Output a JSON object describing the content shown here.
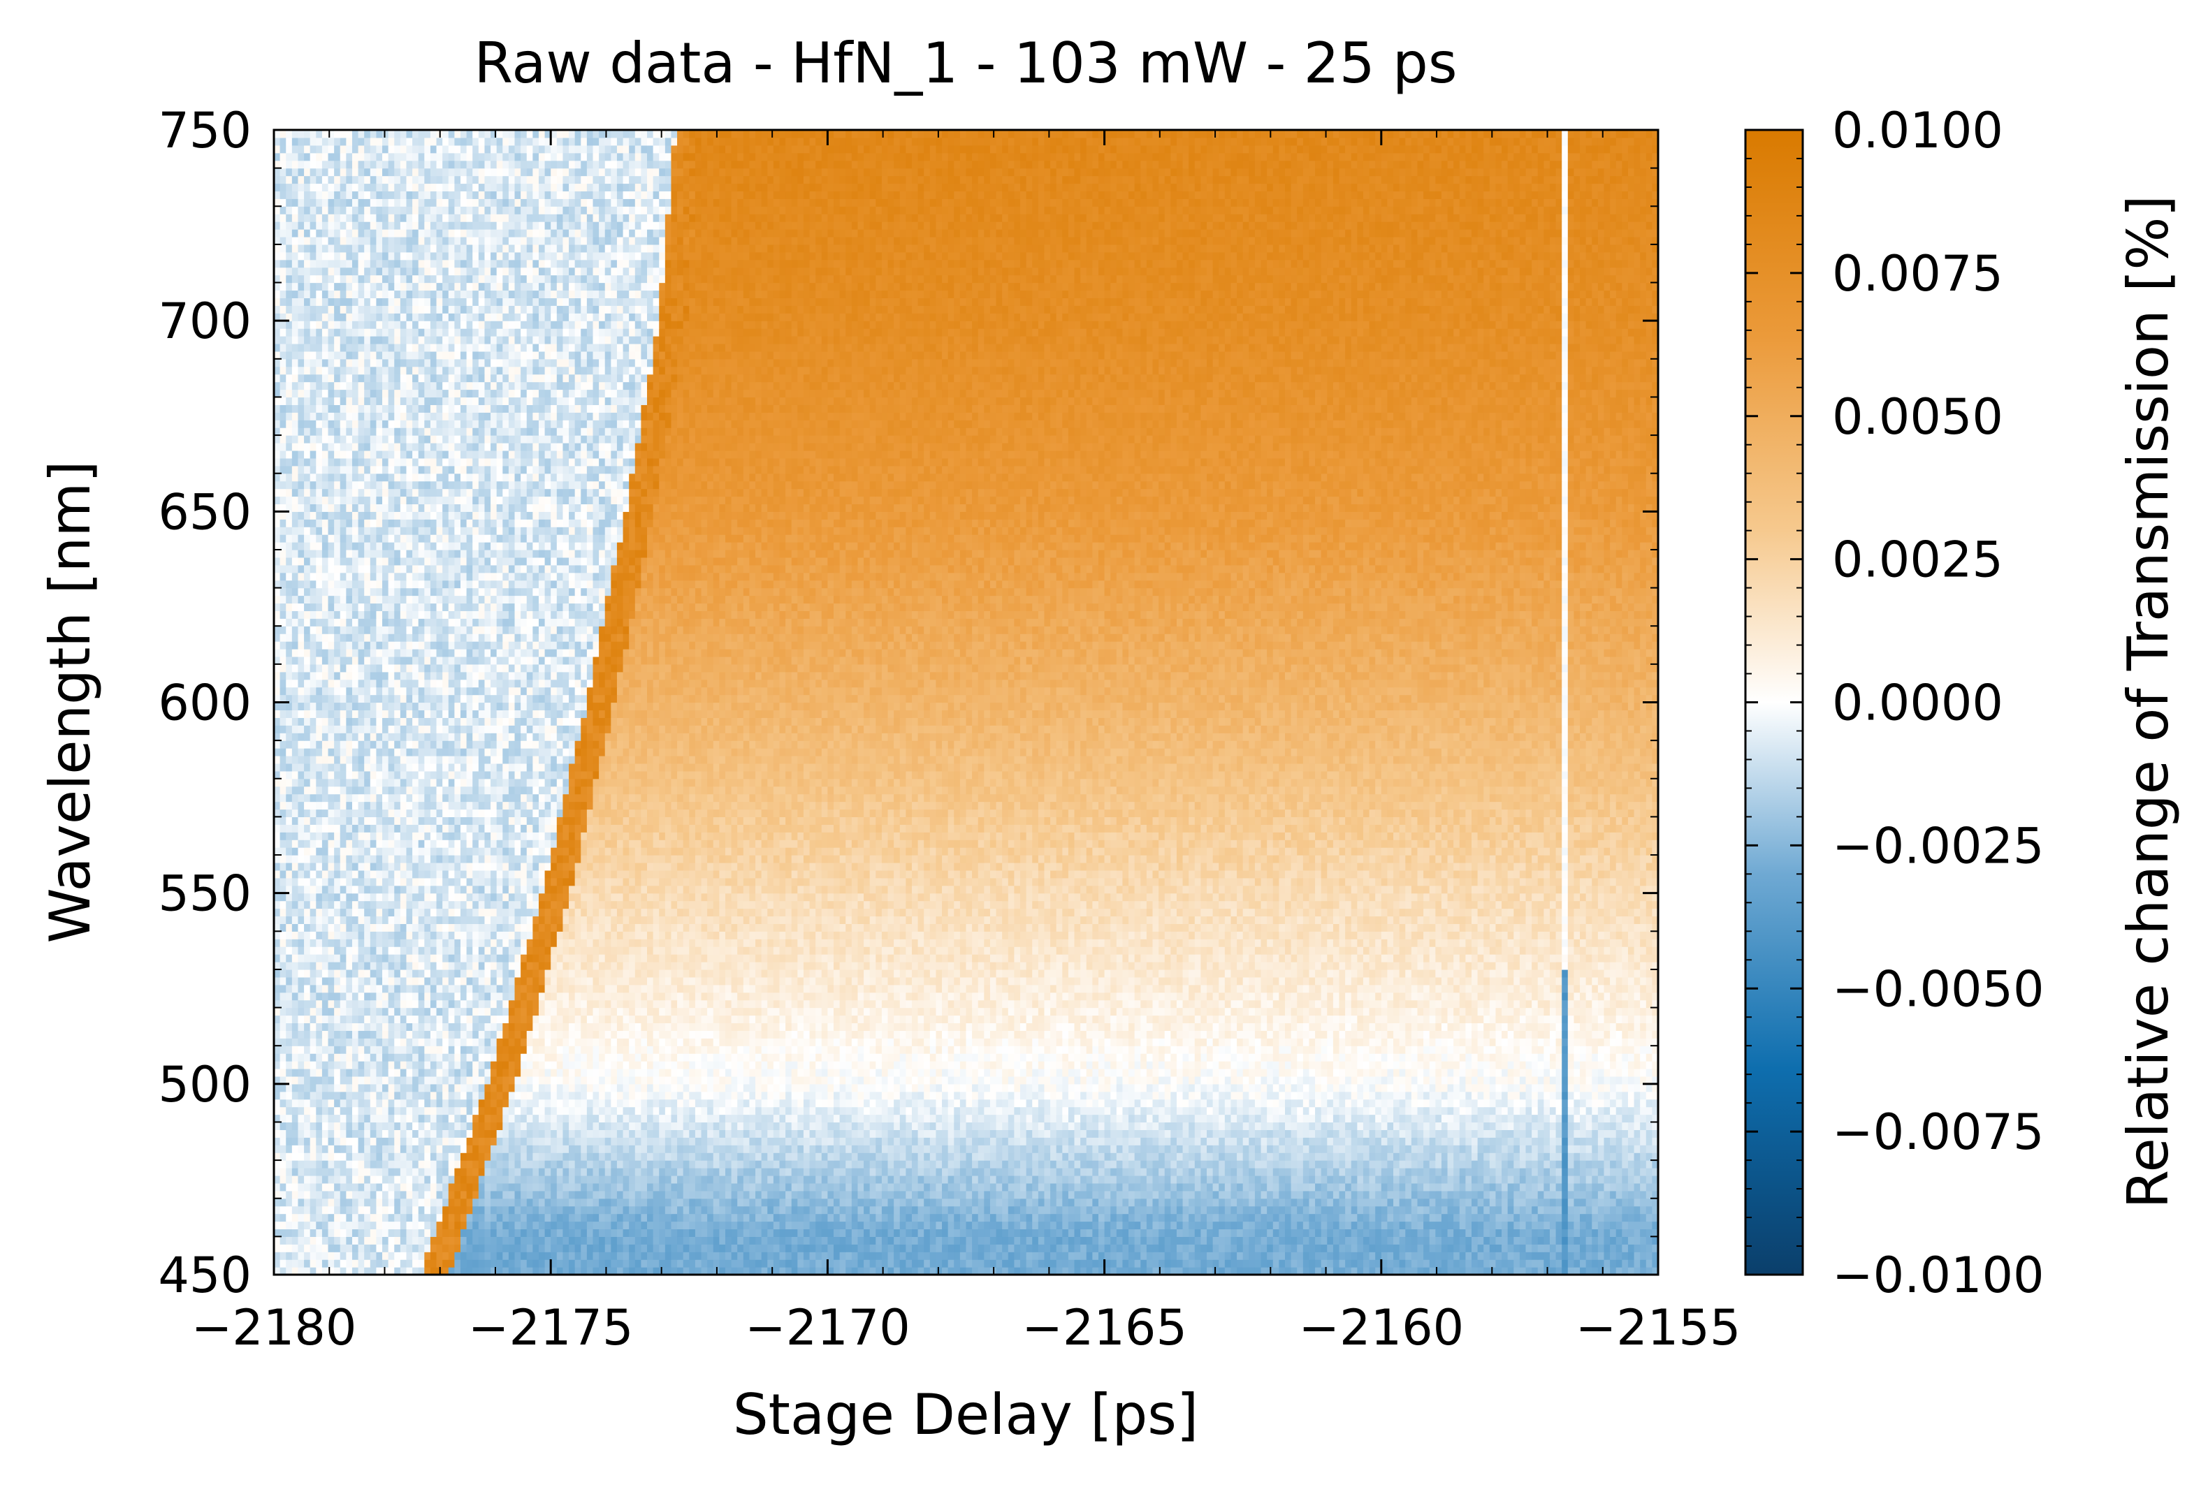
{
  "chart_data": {
    "type": "heatmap",
    "title": "Raw data - HfN_1 - 103 mW - 25 ps",
    "xlabel": "Stage Delay [ps]",
    "ylabel": "Wavelength [nm]",
    "xlim": [
      -2180,
      -2155
    ],
    "ylim": [
      450,
      750
    ],
    "x_ticks": [
      -2180,
      -2175,
      -2170,
      -2165,
      -2160,
      -2155
    ],
    "x_tick_labels": [
      "−2180",
      "−2175",
      "−2170",
      "−2165",
      "−2160",
      "−2155"
    ],
    "y_ticks": [
      450,
      500,
      550,
      600,
      650,
      700,
      750
    ],
    "y_tick_labels": [
      "450",
      "500",
      "550",
      "600",
      "650",
      "700",
      "750"
    ],
    "colorbar": {
      "label": "Relative change of Transmission [%]",
      "vmin": -0.01,
      "vmax": 0.01,
      "ticks": [
        -0.01,
        -0.0075,
        -0.005,
        -0.0025,
        0,
        0.0025,
        0.005,
        0.0075,
        0.01
      ],
      "tick_labels": [
        "−0.0100",
        "−0.0075",
        "−0.0050",
        "−0.0025",
        "0.0000",
        "0.0025",
        "0.0050",
        "0.0075",
        "0.0100"
      ],
      "colormap": {
        "negative": "#1a5a8a",
        "zero": "#ffffff",
        "positive": "#d97a00"
      }
    },
    "features": {
      "onset_edge": [
        {
          "wavelength": 450,
          "delay": -2177.2
        },
        {
          "wavelength": 500,
          "delay": -2176.0
        },
        {
          "wavelength": 550,
          "delay": -2175.0
        },
        {
          "wavelength": 600,
          "delay": -2174.2
        },
        {
          "wavelength": 650,
          "delay": -2173.5
        },
        {
          "wavelength": 700,
          "delay": -2172.9
        },
        {
          "wavelength": 750,
          "delay": -2172.6
        }
      ],
      "signal_after_onset": [
        {
          "wavelength": 460,
          "value": -0.003
        },
        {
          "wavelength": 500,
          "value": 0.0
        },
        {
          "wavelength": 550,
          "value": 0.002
        },
        {
          "wavelength": 600,
          "value": 0.0045
        },
        {
          "wavelength": 650,
          "value": 0.0065
        },
        {
          "wavelength": 700,
          "value": 0.0078
        },
        {
          "wavelength": 750,
          "value": 0.0085
        }
      ],
      "vertical_artifact_delay": -2156.7
    }
  }
}
